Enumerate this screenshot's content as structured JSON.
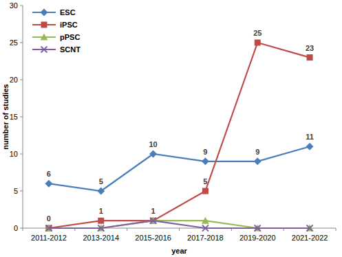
{
  "chart_data": {
    "type": "line",
    "x_label": "year",
    "y_label": "number of studies",
    "categories": [
      "2011-2012",
      "2013-2014",
      "2015-2016",
      "2017-2018",
      "2019-2020",
      "2021-2022"
    ],
    "series": [
      {
        "name": "ESC",
        "color": "#4a7ebb",
        "marker": "diamond",
        "data_labels": true,
        "values": [
          6,
          5,
          10,
          9,
          9,
          11
        ]
      },
      {
        "name": "iPSC",
        "color": "#be4b48",
        "marker": "square",
        "data_labels": true,
        "values": [
          0,
          1,
          1,
          5,
          25,
          23
        ]
      },
      {
        "name": "pPSC",
        "color": "#98b954",
        "marker": "triangle",
        "values": [
          0,
          0,
          1,
          1,
          0,
          0
        ]
      },
      {
        "name": "SCNT",
        "color": "#7d60a0",
        "marker": "x",
        "values": [
          0,
          0,
          1,
          0,
          0,
          0
        ]
      }
    ],
    "ylim": [
      0,
      30
    ],
    "yticks": [
      0,
      5,
      10,
      15,
      20,
      25,
      30
    ],
    "grid": false,
    "legend": "top-left"
  }
}
